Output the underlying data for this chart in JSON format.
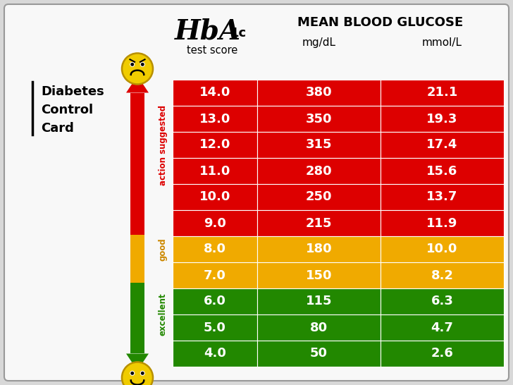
{
  "title_testscore": "test score",
  "title_mean": "MEAN BLOOD GLUCOSE",
  "col_mgdl": "mg/dL",
  "col_mmol": "mmol/L",
  "left_title": "Diabetes\nControl\nCard",
  "label_action": "action suggested",
  "label_good": "good",
  "label_excellent": "excellent",
  "rows": [
    {
      "hba1c": "14.0",
      "mgdl": "380",
      "mmol": "21.1",
      "color": "#dd0000"
    },
    {
      "hba1c": "13.0",
      "mgdl": "350",
      "mmol": "19.3",
      "color": "#dd0000"
    },
    {
      "hba1c": "12.0",
      "mgdl": "315",
      "mmol": "17.4",
      "color": "#dd0000"
    },
    {
      "hba1c": "11.0",
      "mgdl": "280",
      "mmol": "15.6",
      "color": "#dd0000"
    },
    {
      "hba1c": "10.0",
      "mgdl": "250",
      "mmol": "13.7",
      "color": "#dd0000"
    },
    {
      "hba1c": "9.0",
      "mgdl": "215",
      "mmol": "11.9",
      "color": "#dd0000"
    },
    {
      "hba1c": "8.0",
      "mgdl": "180",
      "mmol": "10.0",
      "color": "#f0aa00"
    },
    {
      "hba1c": "7.0",
      "mgdl": "150",
      "mmol": "8.2",
      "color": "#f0aa00"
    },
    {
      "hba1c": "6.0",
      "mgdl": "115",
      "mmol": "6.3",
      "color": "#228800"
    },
    {
      "hba1c": "5.0",
      "mgdl": "80",
      "mmol": "4.7",
      "color": "#228800"
    },
    {
      "hba1c": "4.0",
      "mgdl": "50",
      "mmol": "2.6",
      "color": "#228800"
    }
  ],
  "bg_color": "#d8d8d8",
  "card_bg": "#f8f8f8",
  "border_color": "#999999",
  "red_color": "#dd0000",
  "orange_color": "#f0aa00",
  "green_color": "#228800",
  "action_label_color": "#dd0000",
  "good_label_color": "#cc8800",
  "excellent_label_color": "#228800"
}
